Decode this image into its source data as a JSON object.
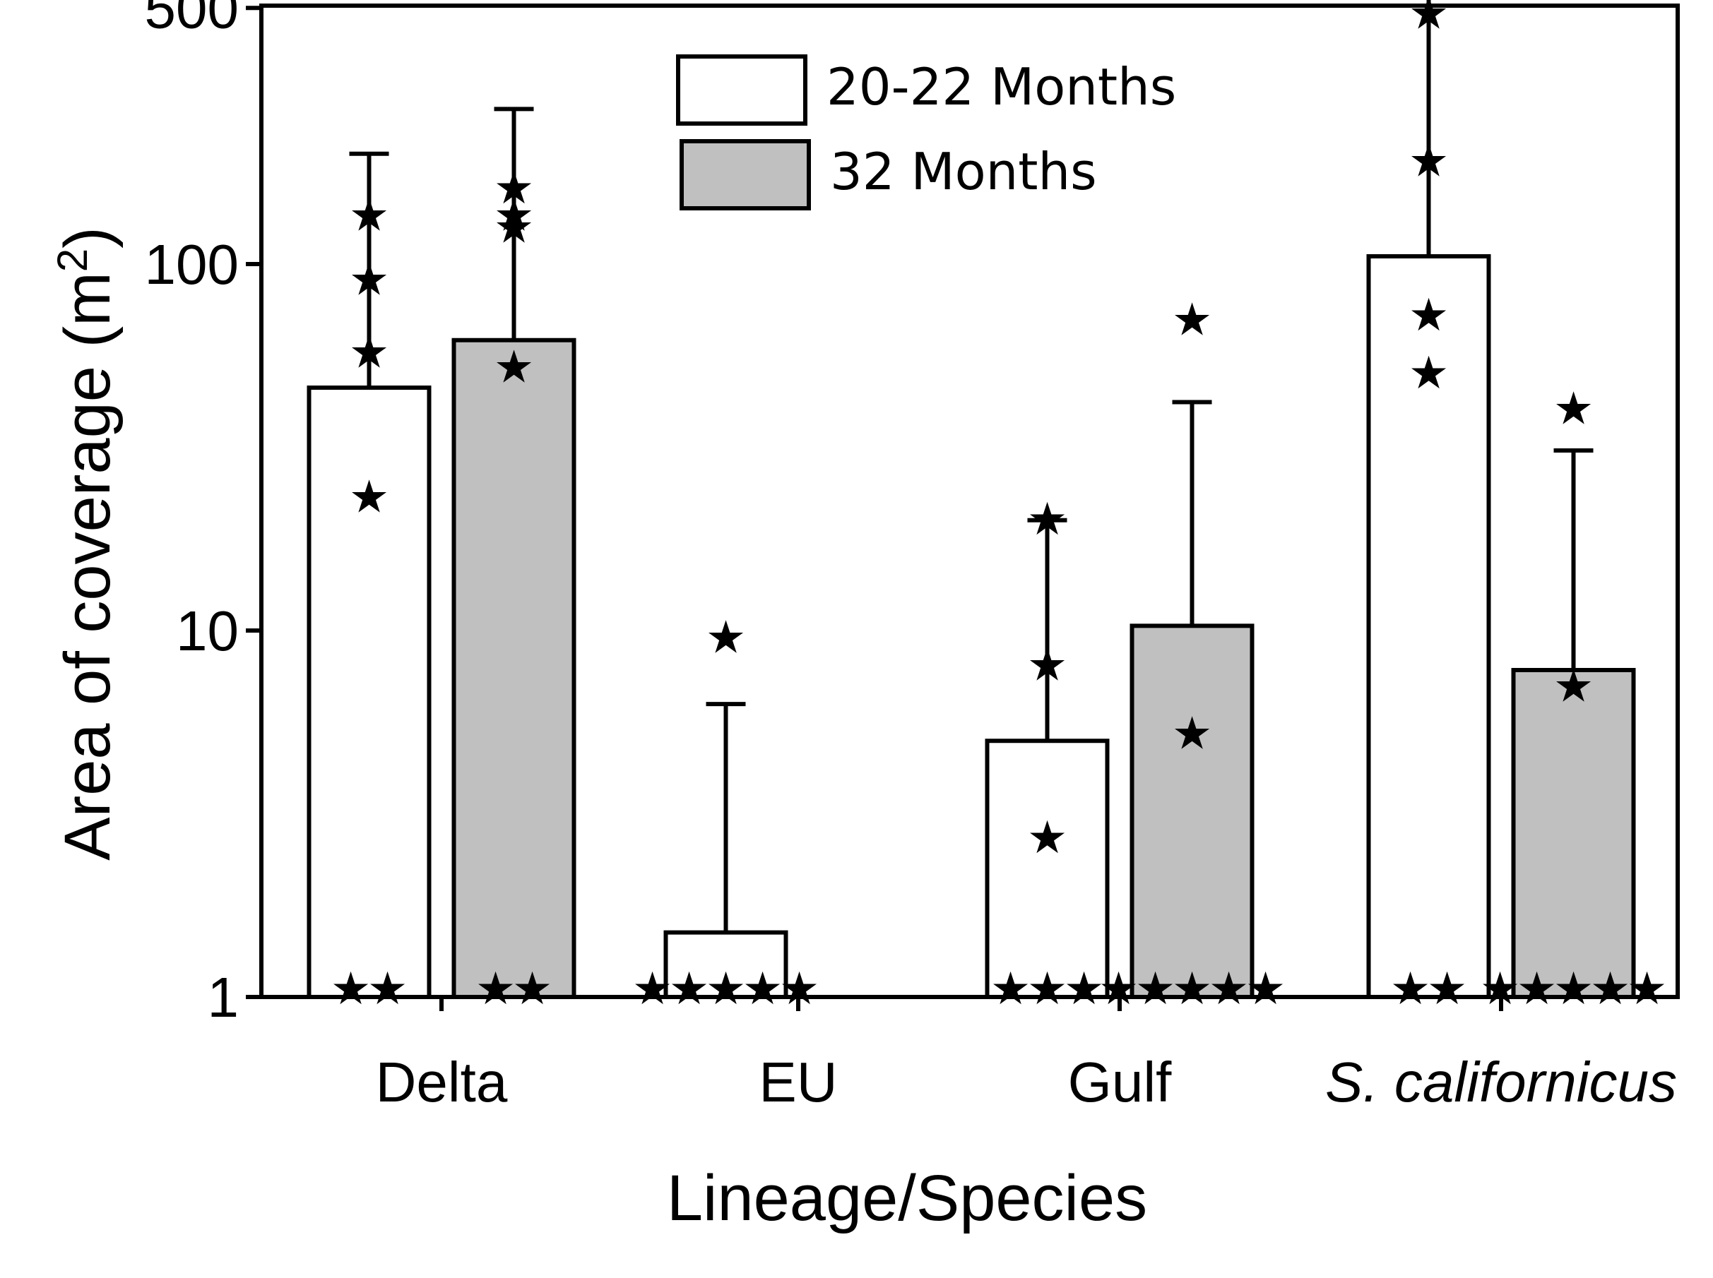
{
  "chart_data": {
    "type": "bar",
    "title": "",
    "xlabel": "Lineage/Species",
    "ylabel": "Area of coverage (m",
    "ylabel_superscript": "2",
    "ylabel_close": ")",
    "yscale": "log",
    "ylim": [
      1,
      650
    ],
    "yticks": [
      1,
      10,
      100,
      500
    ],
    "ytick_labels": [
      "1",
      "10",
      "100",
      "500"
    ],
    "categories": [
      "Delta",
      "EU",
      "Gulf",
      "S. californicus"
    ],
    "category_italic": [
      false,
      false,
      false,
      true
    ],
    "legend_position": "top-center",
    "colors": {
      "series_1": "#ffffff",
      "series_2": "#c0c0c0",
      "stroke": "#000000",
      "marker": "#000000"
    },
    "series": [
      {
        "name": "20-22 Months",
        "values": [
          46,
          1.5,
          5.0,
          105
        ],
        "error_upper": [
          200,
          6.3,
          20,
          650
        ],
        "points": [
          [
            1,
            1,
            23,
            57,
            90,
            135
          ],
          [
            1,
            1,
            1,
            1,
            1,
            9.5
          ],
          [
            1,
            1,
            1,
            2.7,
            8,
            20
          ],
          [
            1,
            1,
            50,
            72,
            190,
            480
          ]
        ]
      },
      {
        "name": "32 Months",
        "values": [
          62,
          1.0,
          10.3,
          7.8
        ],
        "error_upper": [
          265,
          null,
          42,
          31
        ],
        "points": [
          [
            1,
            1,
            52,
            125,
            135,
            160
          ],
          [],
          [
            1,
            1,
            1,
            1,
            1,
            5.2,
            70
          ],
          [
            1,
            1,
            1,
            1,
            1,
            7,
            40
          ]
        ]
      }
    ]
  }
}
